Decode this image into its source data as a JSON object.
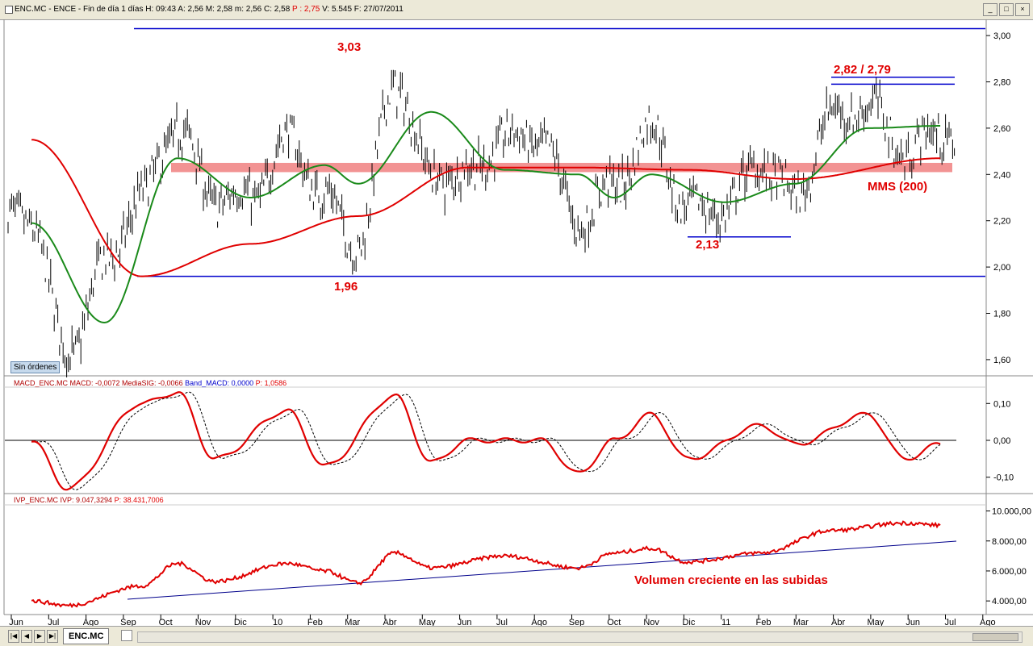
{
  "window": {
    "title_prefix": "ENC.MC - ENCE - Fin de día 1 días  H: 09:43  A: 2,56  M: 2,58  m: 2,56  C: 2,58  ",
    "title_p": "P : 2,75",
    "title_suffix": "  V: 5.545  F: 27/07/2011",
    "btn_min": "_",
    "btn_max": "□",
    "btn_close": "×"
  },
  "status_badge": "Sin órdenes",
  "price_pane": {
    "y_ticks": [
      "3,00",
      "2,80",
      "2,60",
      "2,40",
      "2,20",
      "2,00",
      "1,80",
      "1,60"
    ],
    "y_tick_values": [
      3.0,
      2.8,
      2.6,
      2.4,
      2.2,
      2.0,
      1.8,
      1.6
    ],
    "annotations": {
      "high": "3,03",
      "low": "1,96",
      "mid_low": "2,13",
      "recent": "2,82 / 2,79",
      "mma": "MMS (200)"
    }
  },
  "macd_pane": {
    "label_name": "MACD_ENC.MC  MACD: -0,0072  MediaSIG: -0,0066  ",
    "label_band": "Band_MACD: 0,0000",
    "label_p": "  P: 1,0586",
    "y_ticks": [
      "0,10",
      "0,00",
      "-0,10"
    ],
    "y_tick_values": [
      0.1,
      0.0,
      -0.1
    ]
  },
  "ivp_pane": {
    "label_name": "IVP_ENC.MC  IVP: 9.047,3294  ",
    "label_p": "P: 38.431,7006",
    "y_ticks": [
      "10.000,00",
      "8.000,00",
      "6.000,00",
      "4.000,00"
    ],
    "y_tick_values": [
      10000,
      8000,
      6000,
      4000
    ],
    "annotation": "Volumen creciente en las subidas"
  },
  "x_axis": {
    "labels": [
      "Jun",
      "Jul",
      "Ago",
      "Sep",
      "Oct",
      "Nov",
      "Dic",
      "10",
      "Feb",
      "Mar",
      "Abr",
      "May",
      "Jun",
      "Jul",
      "Ago",
      "Sep",
      "Oct",
      "Nov",
      "Dic",
      "11",
      "Feb",
      "Mar",
      "Abr",
      "May",
      "Jun",
      "Jul",
      "Ago"
    ]
  },
  "bottom_bar": {
    "tab_label": "ENC.MC"
  },
  "colors": {
    "price_bars": "#000000",
    "mma_200": "#e00000",
    "mma_short": "#1a8a1a",
    "support_resistance": "#0000cc",
    "zone": "#f08080",
    "macd": "#e00000",
    "signal": "#000000",
    "ivp": "#e00000",
    "trend": "#00008b",
    "annotation_text": "#e00000"
  },
  "chart_data": [
    {
      "type": "candlestick",
      "title": "",
      "series": [
        {
          "name": "",
          "x": [
            "2009-06",
            "2009-07",
            "2009-08",
            "2009-09",
            "2009-10",
            "2009-11",
            "2009-12",
            "2010-01",
            "2010-02",
            "2010-03",
            "2010-04",
            "2010-05",
            "2010-06",
            "2010-07",
            "2010-08",
            "2010-09",
            "2010-10",
            "2010-11",
            "2010-12",
            "2011-01",
            "2011-02",
            "2011-03",
            "2011-04",
            "2011-05",
            "2011-06",
            "2011-07"
          ],
          "close": [
            2.2,
            1.62,
            2.0,
            2.3,
            2.6,
            2.3,
            2.3,
            2.55,
            2.3,
            2.1,
            2.8,
            2.4,
            2.4,
            2.55,
            2.55,
            2.2,
            2.35,
            2.6,
            2.25,
            2.25,
            2.45,
            2.3,
            2.65,
            2.7,
            2.5,
            2.58
          ]
        },
        {
          "name": "MMS (200)",
          "x": [
            "2009-06",
            "2009-09",
            "2009-12",
            "2010-03",
            "2010-06",
            "2010-09",
            "2010-12",
            "2011-03",
            "2011-07"
          ],
          "values": [
            2.55,
            1.96,
            2.1,
            2.22,
            2.43,
            2.43,
            2.42,
            2.38,
            2.47
          ]
        },
        {
          "name": "",
          "x": [
            "2009-06",
            "2009-08",
            "2009-10",
            "2009-12",
            "2010-02",
            "2010-03",
            "2010-05",
            "2010-07",
            "2010-09",
            "2010-10",
            "2010-11",
            "2011-01",
            "2011-03",
            "2011-05",
            "2011-07"
          ],
          "values": [
            2.19,
            1.76,
            2.47,
            2.3,
            2.44,
            2.36,
            2.67,
            2.42,
            2.4,
            2.3,
            2.4,
            2.28,
            2.36,
            2.6,
            2.61
          ]
        }
      ],
      "levels": [
        3.03,
        1.96,
        2.13,
        2.82,
        2.79
      ],
      "zone": [
        2.41,
        2.45
      ],
      "ylim": [
        1.53,
        3.07
      ],
      "grid": false
    },
    {
      "type": "line",
      "title": "",
      "series": [
        {
          "name": "MACD",
          "x": [
            "2009-06",
            "2009-07",
            "2009-09",
            "2009-10",
            "2009-11",
            "2010-01",
            "2010-02",
            "2010-04",
            "2010-05",
            "2010-06",
            "2010-08",
            "2010-09",
            "2010-10",
            "2010-11",
            "2010-12",
            "2011-02",
            "2011-03",
            "2011-05",
            "2011-06",
            "2011-07"
          ],
          "values": [
            0.0,
            -0.13,
            0.1,
            0.13,
            -0.05,
            0.08,
            -0.07,
            0.12,
            -0.06,
            0.0,
            0.0,
            -0.09,
            0.0,
            0.07,
            -0.05,
            0.04,
            -0.01,
            0.07,
            -0.05,
            -0.01
          ]
        }
      ],
      "ylim": [
        -0.14,
        0.14
      ]
    },
    {
      "type": "line",
      "title": "",
      "series": [
        {
          "name": "IVP",
          "x": [
            "2009-06",
            "2009-07",
            "2009-09",
            "2009-10",
            "2009-11",
            "2010-01",
            "2010-02",
            "2010-03",
            "2010-04",
            "2010-05",
            "2010-07",
            "2010-09",
            "2010-10",
            "2010-11",
            "2010-12",
            "2011-02",
            "2011-04",
            "2011-06",
            "2011-07"
          ],
          "values": [
            4000,
            3700,
            5000,
            6500,
            5300,
            6500,
            6000,
            5200,
            7200,
            6200,
            7000,
            6200,
            7200,
            7500,
            6600,
            7200,
            8700,
            9200,
            9047
          ]
        }
      ],
      "ylim": [
        3200,
        10300
      ]
    }
  ]
}
